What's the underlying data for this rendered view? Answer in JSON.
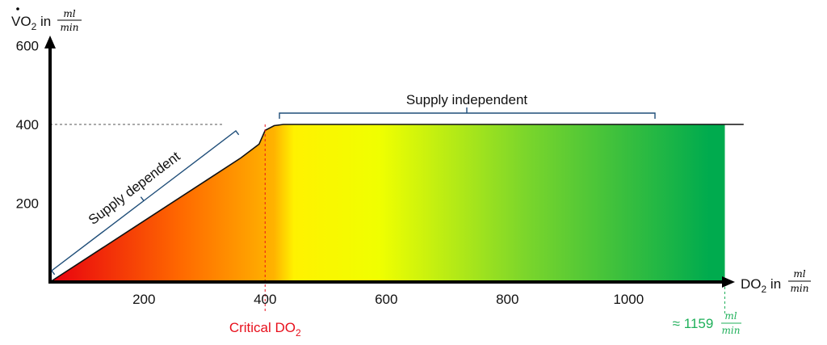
{
  "chart_data": {
    "type": "area",
    "x_axis": {
      "label": "DO",
      "label_sub": "2",
      "label_unit_prefix": "in",
      "unit_num": "ml",
      "unit_den": "min",
      "ticks": [
        200,
        400,
        600,
        800,
        1000
      ],
      "tick_labels": [
        "200",
        "400",
        "600",
        "800",
        "1000"
      ],
      "range": [
        45,
        1195
      ]
    },
    "y_axis": {
      "label": "VO",
      "label_sub": "2",
      "label_unit_prefix": "in",
      "unit_num": "ml",
      "unit_den": "min",
      "ticks": [
        200,
        400,
        600
      ],
      "tick_labels": [
        "200",
        "400",
        "600"
      ],
      "range": [
        0,
        670
      ]
    },
    "curve": {
      "x": [
        45,
        100,
        200,
        300,
        360,
        390,
        400,
        415,
        430,
        600,
        800,
        1000,
        1159,
        1190
      ],
      "y": [
        0,
        55,
        155,
        255,
        315,
        350,
        385,
        397,
        400,
        400,
        400,
        400,
        400,
        400
      ]
    },
    "fill_to_x": 1159,
    "reference_line_y": 400,
    "critical_x": 400,
    "critical_label": "Critical DO",
    "critical_label_sub": "2",
    "max_marker": {
      "x": 1159,
      "prefix": "≈",
      "value": "1159",
      "unit_num": "ml",
      "unit_den": "min"
    },
    "regions": [
      {
        "label": "Supply dependent",
        "x_range": [
          45,
          355
        ]
      },
      {
        "label": "Supply independent",
        "x_range": [
          420,
          1045
        ]
      }
    ],
    "gradient_colors": [
      "#e8000f",
      "#ff9900",
      "#fff200",
      "#f4ff00",
      "#7cd62b",
      "#00ab4e"
    ],
    "colors": {
      "critical": "#e8101c",
      "max_marker": "#1fb05a",
      "bracket": "#1f4e79",
      "axis": "#000000"
    }
  }
}
